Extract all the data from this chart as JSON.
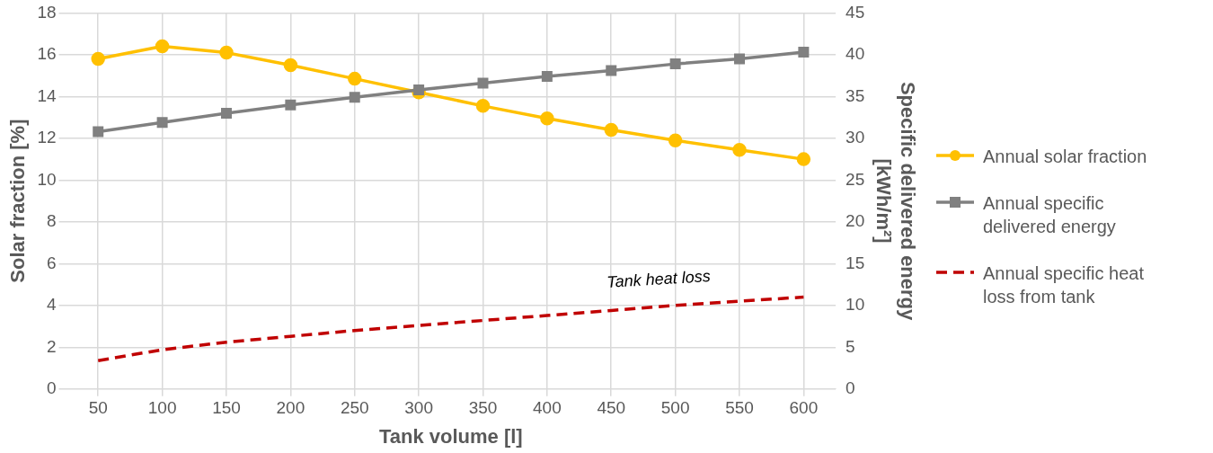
{
  "chart_data": {
    "type": "line",
    "xlabel": "Tank volume [l]",
    "ylabel": "Solar fraction [%]",
    "y2label": "Specific delivered energy [kWh/m²]",
    "categories": [
      "50",
      "100",
      "150",
      "200",
      "250",
      "300",
      "350",
      "400",
      "450",
      "500",
      "550",
      "600"
    ],
    "series": [
      {
        "name": "Annual solar fraction",
        "color": "#ffc000",
        "marker": "circle",
        "line_style": "solid",
        "values": [
          15.8,
          16.4,
          16.1,
          15.5,
          14.85,
          14.2,
          13.55,
          12.95,
          12.4,
          11.9,
          11.45,
          11.0
        ]
      },
      {
        "name": "Annual specific delivered energy",
        "color": "#808080",
        "marker": "square",
        "line_style": "solid",
        "axis": "y2",
        "values": [
          30.8,
          31.9,
          33.0,
          34.0,
          34.9,
          35.8,
          36.6,
          37.4,
          38.1,
          38.9,
          39.5,
          40.3
        ]
      },
      {
        "name": "Annual specific heat loss from tank",
        "color": "#c00000",
        "marker": "none",
        "line_style": "dashed",
        "axis": "y2",
        "values": [
          3.4,
          4.7,
          5.6,
          6.3,
          7.0,
          7.6,
          8.2,
          8.8,
          9.4,
          10.0,
          10.5,
          11.0
        ]
      }
    ],
    "ylim": [
      0,
      18
    ],
    "yticks": [
      0,
      2,
      4,
      6,
      8,
      10,
      12,
      14,
      16,
      18
    ],
    "y2lim": [
      0,
      45
    ],
    "y2ticks": [
      0,
      5,
      10,
      15,
      20,
      25,
      30,
      35,
      40,
      45
    ],
    "grid": true,
    "legend": "right",
    "annotations": [
      "Tank heat loss"
    ]
  }
}
